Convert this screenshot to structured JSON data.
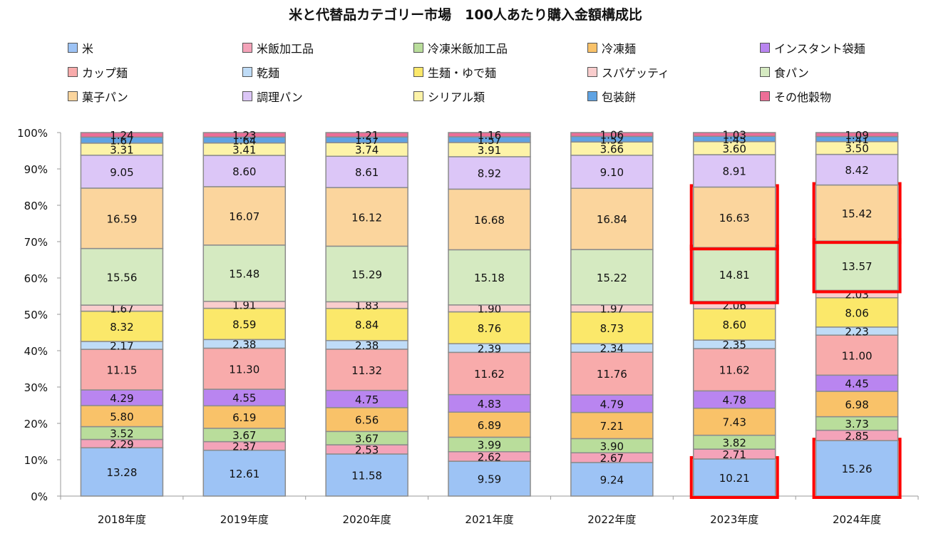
{
  "chart_data": {
    "type": "bar",
    "stacked": true,
    "title": "米と代替品カテゴリー市場　100人あたり購入金額構成比",
    "categories": [
      "2018年度",
      "2019年度",
      "2020年度",
      "2021年度",
      "2022年度",
      "2023年度",
      "2024年度"
    ],
    "y_ticks": [
      "0%",
      "10%",
      "20%",
      "30%",
      "40%",
      "50%",
      "60%",
      "70%",
      "80%",
      "90%",
      "100%"
    ],
    "ylim": [
      0,
      100
    ],
    "grid": false,
    "legend_position": "top",
    "series": [
      {
        "name": "米",
        "color": "#9dc3f5",
        "values": [
          13.28,
          12.61,
          11.58,
          9.59,
          9.24,
          10.21,
          15.26
        ]
      },
      {
        "name": "米飯加工品",
        "color": "#f4a3b9",
        "values": [
          2.29,
          2.37,
          2.53,
          2.62,
          2.67,
          2.71,
          2.85
        ]
      },
      {
        "name": "冷凍米飯加工品",
        "color": "#b9dd9b",
        "values": [
          3.52,
          3.67,
          3.67,
          3.99,
          3.9,
          3.82,
          3.73
        ]
      },
      {
        "name": "冷凍麺",
        "color": "#f9c269",
        "values": [
          5.8,
          6.19,
          6.56,
          6.89,
          7.21,
          7.43,
          6.98
        ]
      },
      {
        "name": "インスタント袋麺",
        "color": "#b985f0",
        "values": [
          4.29,
          4.55,
          4.75,
          4.83,
          4.79,
          4.78,
          4.45
        ]
      },
      {
        "name": "カップ麺",
        "color": "#f8abab",
        "values": [
          11.15,
          11.3,
          11.32,
          11.62,
          11.76,
          11.62,
          11.0
        ]
      },
      {
        "name": "乾麺",
        "color": "#bfdcf7",
        "values": [
          2.17,
          2.38,
          2.38,
          2.39,
          2.34,
          2.35,
          2.23
        ]
      },
      {
        "name": "生麺・ゆで麺",
        "color": "#fbe86a",
        "values": [
          8.32,
          8.59,
          8.84,
          8.76,
          8.73,
          8.6,
          8.06
        ]
      },
      {
        "name": "スパゲッティ",
        "color": "#f9cdcd",
        "values": [
          1.67,
          1.91,
          1.83,
          1.9,
          1.97,
          2.06,
          2.03
        ]
      },
      {
        "name": "食パン",
        "color": "#d5eac1",
        "values": [
          15.56,
          15.48,
          15.29,
          15.18,
          15.22,
          14.81,
          13.57
        ]
      },
      {
        "name": "菓子パン",
        "color": "#fbd59d",
        "values": [
          16.59,
          16.07,
          16.12,
          16.68,
          16.84,
          16.63,
          15.42
        ]
      },
      {
        "name": "調理パン",
        "color": "#dcc6f7",
        "values": [
          9.05,
          8.6,
          8.61,
          8.92,
          9.1,
          8.91,
          8.42
        ]
      },
      {
        "name": "シリアル類",
        "color": "#fdf3a8",
        "values": [
          3.31,
          3.41,
          3.74,
          3.91,
          3.66,
          3.6,
          3.5
        ]
      },
      {
        "name": "包装餅",
        "color": "#5fa3e3",
        "values": [
          1.67,
          1.64,
          1.57,
          1.57,
          1.52,
          1.45,
          1.41
        ]
      },
      {
        "name": "その他穀物",
        "color": "#ec6e97",
        "values": [
          1.24,
          1.23,
          1.21,
          1.16,
          1.06,
          1.03,
          1.09
        ]
      }
    ],
    "highlights": [
      {
        "category": "2023年度",
        "series": "米"
      },
      {
        "category": "2023年度",
        "series": "食パン"
      },
      {
        "category": "2023年度",
        "series": "菓子パン"
      },
      {
        "category": "2024年度",
        "series": "米"
      },
      {
        "category": "2024年度",
        "series": "食パン"
      },
      {
        "category": "2024年度",
        "series": "菓子パン"
      }
    ],
    "highlight_color": "#ff0000"
  }
}
